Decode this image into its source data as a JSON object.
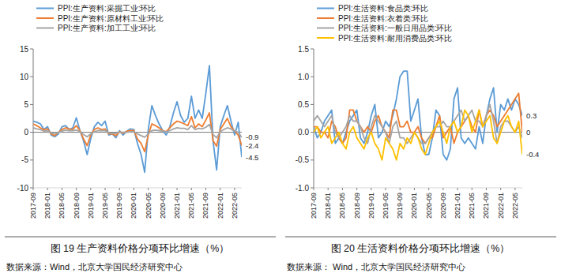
{
  "chart_data": [
    {
      "type": "line",
      "caption": "图 19 生产资料价格分项环比增速（%）",
      "source": "数据来源：Wind，北京大学国民经济研究中心",
      "categories": [
        "2017-09",
        null,
        null,
        null,
        "2018-01",
        null,
        null,
        null,
        "2018-05",
        null,
        null,
        null,
        "2018-09",
        null,
        null,
        null,
        "2019-01",
        null,
        null,
        null,
        "2019-05",
        null,
        null,
        null,
        "2019-09",
        null,
        null,
        null,
        "2020-01",
        null,
        null,
        null,
        "2020-05",
        null,
        null,
        null,
        "2020-09",
        null,
        null,
        null,
        "2021-01",
        null,
        null,
        null,
        "2021-05",
        null,
        null,
        null,
        "2021-09",
        null,
        null,
        null,
        "2022-01",
        null,
        null,
        null,
        "2022-05",
        null,
        null
      ],
      "series": [
        {
          "name": "PPI:生产资料:采掘工业:环比",
          "color": "#5b9bd5",
          "values": [
            2.0,
            1.8,
            1.5,
            0.5,
            1.0,
            -0.5,
            -0.8,
            -0.3,
            1.0,
            1.2,
            0.5,
            0.8,
            2.6,
            0.3,
            -1.5,
            -4.0,
            -1.2,
            1.0,
            1.8,
            1.2,
            2.0,
            -0.5,
            -0.3,
            -1.0,
            0.3,
            -0.5,
            0.2,
            0.6,
            0.5,
            -2.0,
            -4.0,
            -7.2,
            0.5,
            4.8,
            3.0,
            1.5,
            0.3,
            -0.5,
            1.0,
            3.5,
            5.5,
            3.0,
            1.8,
            2.5,
            6.5,
            2.5,
            4.0,
            2.5,
            7.0,
            12.0,
            -1.5,
            -6.8,
            1.0,
            3.0,
            4.8,
            2.0,
            -0.5,
            1.8,
            -4.5
          ]
        },
        {
          "name": "PPI:生产资料:原材料工业:环比",
          "color": "#ed7d31",
          "values": [
            1.5,
            1.2,
            0.8,
            0.5,
            0.6,
            -0.3,
            -0.6,
            0,
            0.5,
            0.8,
            0.6,
            0.5,
            1.2,
            0.3,
            -1.2,
            -2.4,
            -0.5,
            0.5,
            0.8,
            0.5,
            0.6,
            -0.3,
            -0.3,
            -0.6,
            0.1,
            -0.2,
            0.2,
            0.3,
            0.3,
            -1.2,
            -2.0,
            -3.5,
            -0.5,
            1.5,
            1.2,
            0.8,
            0.3,
            0.1,
            0.8,
            1.5,
            2.0,
            1.8,
            1.5,
            1.2,
            2.8,
            0.8,
            1.5,
            1.0,
            2.2,
            3.5,
            -1.5,
            -2.5,
            0.5,
            1.5,
            2.5,
            1.0,
            0.2,
            -0.5,
            -2.4
          ]
        },
        {
          "name": "PPI:生产资料:加工工业:环比",
          "color": "#a5a5a5",
          "values": [
            0.8,
            0.6,
            0.5,
            0.2,
            0.3,
            -0.1,
            -0.3,
            0,
            0.2,
            0.4,
            0.3,
            0.3,
            0.4,
            0.1,
            -0.4,
            -0.8,
            -0.3,
            0.1,
            0.3,
            0.3,
            0.3,
            -0.1,
            -0.2,
            -0.2,
            0,
            0,
            0,
            0.1,
            0.1,
            -0.3,
            -0.6,
            -0.9,
            -0.3,
            0.3,
            0.4,
            0.3,
            0.2,
            0.1,
            0.3,
            0.6,
            0.8,
            0.7,
            0.7,
            0.5,
            1.2,
            0.5,
            0.7,
            0.6,
            0.9,
            1.4,
            -0.4,
            -1.0,
            0.1,
            0.5,
            0.8,
            0.6,
            0.2,
            0,
            -0.9
          ]
        }
      ],
      "annotations": [
        {
          "text": "-0.9",
          "y": -0.9
        },
        {
          "text": "-2.4",
          "y": -2.4
        },
        {
          "text": "-4.5",
          "y": -4.5
        }
      ],
      "ylim": [
        -10,
        15
      ],
      "yticks": [
        -10,
        -5,
        0,
        5,
        10,
        15
      ],
      "grid": false,
      "legend": "top"
    },
    {
      "type": "line",
      "caption": "图 20 生活资料价格分项环比增速（%）",
      "source": "数据来源：  Wind，北京大学国民经济研究中心",
      "categories": [
        "2017-09",
        null,
        null,
        null,
        "2018-01",
        null,
        null,
        null,
        "2018-05",
        null,
        null,
        null,
        "2018-09",
        null,
        null,
        null,
        "2019-01",
        null,
        null,
        null,
        "2019-05",
        null,
        null,
        null,
        "2019-09",
        null,
        null,
        null,
        "2020-01",
        null,
        null,
        null,
        "2020-05",
        null,
        null,
        null,
        "2020-09",
        null,
        null,
        null,
        "2021-01",
        null,
        null,
        null,
        "2021-05",
        null,
        null,
        null,
        "2021-09",
        null,
        null,
        null,
        "2022-01",
        null,
        null,
        null,
        "2022-05",
        null,
        null
      ],
      "series": [
        {
          "name": "PPI:生活资料:食品类:环比",
          "color": "#5b9bd5",
          "values": [
            0.1,
            -0.1,
            0.0,
            0.2,
            0.3,
            0.4,
            -0.2,
            -0.1,
            -0.2,
            0.0,
            0.2,
            0.3,
            0.4,
            -0.1,
            -0.2,
            0.0,
            0.3,
            0.5,
            -0.1,
            0.0,
            0.2,
            0.1,
            0.3,
            0.6,
            1.0,
            1.1,
            1.1,
            0.2,
            0.4,
            0.6,
            -0.1,
            -0.4,
            -0.4,
            -0.1,
            0.4,
            0.3,
            -0.4,
            -0.5,
            -0.3,
            0.6,
            0.8,
            -0.1,
            -0.2,
            -0.1,
            -0.2,
            -0.3,
            0.1,
            -0.2,
            0.3,
            0.6,
            0.8,
            0.0,
            0.5,
            0.4,
            0.6,
            0.4,
            0.6,
            0.5,
            0.3
          ]
        },
        {
          "name": "PPI:生活资料:衣着类:环比",
          "color": "#ed7d31",
          "values": [
            0.1,
            0.1,
            0.0,
            0.0,
            -0.1,
            0.2,
            0.1,
            -0.1,
            -0.2,
            -0.1,
            0.4,
            0.4,
            0.2,
            0.1,
            0.0,
            0.1,
            0.0,
            0.2,
            0.3,
            0.1,
            0.0,
            -0.1,
            0.4,
            0.4,
            0.1,
            0.1,
            0.2,
            0.0,
            0.0,
            0.1,
            -0.1,
            -0.2,
            -0.1,
            -0.1,
            0.1,
            0.3,
            -0.1,
            0.0,
            0.1,
            -0.2,
            0.0,
            0.1,
            0.2,
            0.3,
            0.1,
            0.0,
            0.4,
            0.1,
            0.3,
            0.4,
            0.3,
            0.1,
            0.2,
            0.3,
            0.4,
            0.5,
            0.6,
            0.7,
            0.0
          ]
        },
        {
          "name": "PPI:生活资料:一般日用品类:环比",
          "color": "#a5a5a5",
          "values": [
            0.2,
            0.3,
            0.2,
            0.1,
            0.2,
            0.3,
            0.0,
            -0.1,
            0.0,
            0.1,
            0.3,
            0.2,
            0.2,
            0.1,
            -0.1,
            -0.2,
            0.1,
            0.3,
            0.2,
            0.1,
            0.0,
            -0.2,
            0.1,
            0.2,
            -0.1,
            -0.1,
            -0.2,
            -0.1,
            0.0,
            -0.1,
            -0.2,
            -0.2,
            -0.1,
            0.0,
            0.1,
            0.1,
            0.2,
            0.1,
            0.1,
            0.2,
            0.3,
            0.4,
            0.2,
            0.3,
            0.4,
            0.2,
            0.2,
            0.1,
            0.3,
            0.5,
            0.2,
            -0.2,
            0.1,
            0.2,
            0.2,
            0.1,
            0.0,
            0.1,
            -0.1
          ]
        },
        {
          "name": "PPI:生活资料:耐用消费品类:环比",
          "color": "#ffc000",
          "values": [
            0.0,
            0.1,
            -0.1,
            0.0,
            0.1,
            -0.2,
            -0.1,
            0.0,
            -0.2,
            -0.3,
            0.0,
            0.1,
            -0.1,
            -0.2,
            -0.3,
            -0.1,
            0.0,
            -0.2,
            -0.3,
            -0.5,
            -0.1,
            -0.2,
            -0.3,
            -0.5,
            -0.2,
            -0.3,
            -0.1,
            -0.2,
            0.0,
            -0.1,
            -0.3,
            -0.4,
            -0.2,
            0.0,
            0.1,
            0.2,
            0.0,
            -0.2,
            0.1,
            0.2,
            0.0,
            0.1,
            0.4,
            0.3,
            0.0,
            0.2,
            0.4,
            0.1,
            0.2,
            0.3,
            -0.1,
            -0.2,
            0.0,
            0.2,
            0.3,
            0.1,
            0.0,
            0.2,
            -0.4
          ]
        }
      ],
      "annotations": [
        {
          "text": "0.3",
          "y": 0.3
        },
        {
          "text": "0",
          "y": 0
        },
        {
          "text": "-0.4",
          "y": -0.4
        }
      ],
      "ylim": [
        -1.0,
        1.5
      ],
      "yticks": [
        {
          "value": -1.0,
          "label": "-1.0"
        },
        {
          "value": -0.5,
          "label": "-0.5"
        },
        {
          "value": 0,
          "label": "0.0"
        },
        {
          "value": 0.5,
          "label": "0.5"
        },
        {
          "value": 1.0,
          "label": "1.0"
        },
        {
          "value": 1.5,
          "label": "1.5"
        }
      ],
      "grid": false,
      "legend": "top"
    }
  ]
}
